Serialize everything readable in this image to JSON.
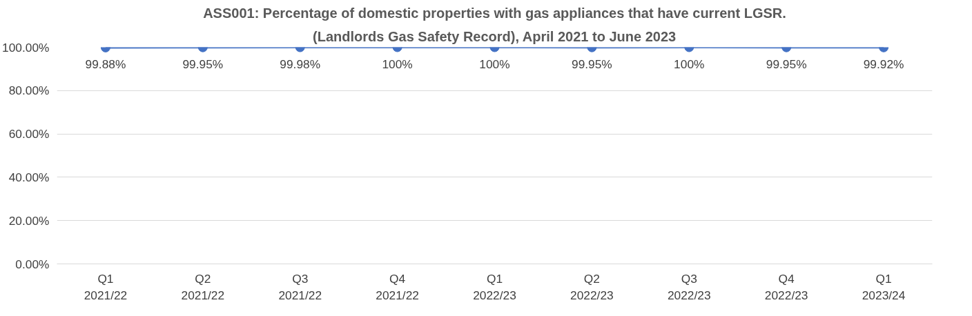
{
  "chart_data": {
    "type": "line",
    "title": "ASS001: Percentage of domestic properties with gas appliances that have current LGSR.",
    "subtitle": "(Landlords Gas Safety Record), April 2021 to June 2023",
    "categories": [
      "Q1\n2021/22",
      "Q2\n2021/22",
      "Q3\n2021/22",
      "Q4\n2021/22",
      "Q1\n2022/23",
      "Q2\n2022/23",
      "Q3\n2022/23",
      "Q4\n2022/23",
      "Q1\n2023/24"
    ],
    "series": [
      {
        "color": "#4472c4",
        "values": [
          99.88,
          99.95,
          99.98,
          100,
          100,
          99.95,
          100,
          99.95,
          99.92
        ],
        "value_labels": [
          "99.88%",
          "99.95%",
          "99.98%",
          "100%",
          "100%",
          "99.95%",
          "100%",
          "99.95%",
          "99.92%"
        ]
      }
    ],
    "ylim": [
      0,
      100
    ],
    "yticks": [
      {
        "value": 0,
        "label": "0.00%"
      },
      {
        "value": 20,
        "label": "20.00%"
      },
      {
        "value": 40,
        "label": "40.00%"
      },
      {
        "value": 60,
        "label": "60.00%"
      },
      {
        "value": 80,
        "label": "80.00%"
      },
      {
        "value": 100,
        "label": "100.00%"
      }
    ],
    "grid": "y",
    "marker": "circle",
    "line_style": "solid"
  }
}
